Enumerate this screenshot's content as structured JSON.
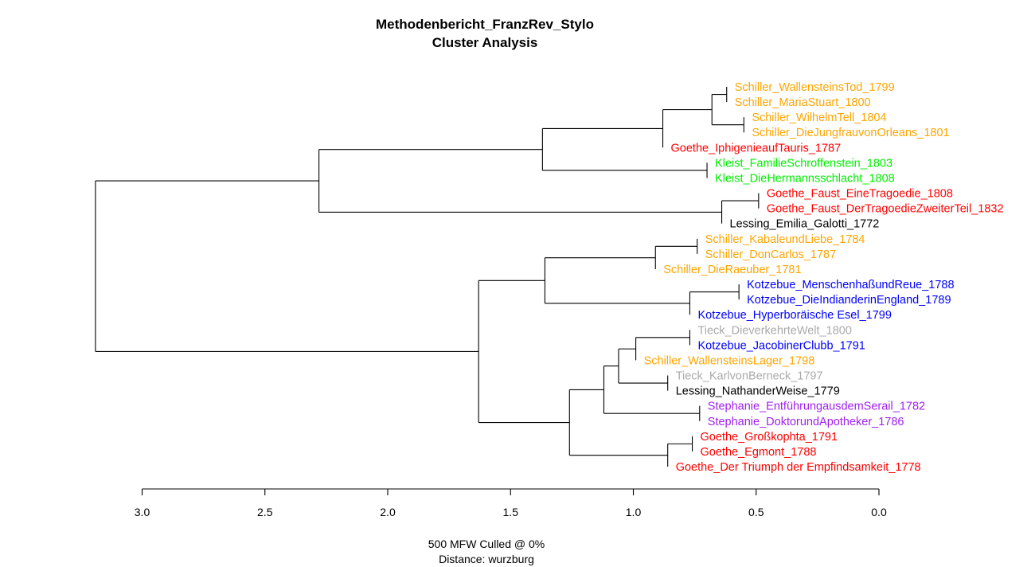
{
  "chart_data": {
    "type": "dendrogram",
    "title": [
      "Methodenbericht_FranzRev_Stylo",
      "Cluster Analysis"
    ],
    "footer": [
      "500 MFW  Culled @ 0%",
      "Distance: wurzburg"
    ],
    "x_axis": {
      "ticks": [
        3.0,
        2.5,
        2.0,
        1.5,
        1.0,
        0.5,
        0.0
      ],
      "tick_labels": [
        "3.0",
        "2.5",
        "2.0",
        "1.5",
        "1.0",
        "0.5",
        "0.0"
      ],
      "range": [
        3.0,
        0.0
      ],
      "reversed": true
    },
    "colors": {
      "Schiller": "#ffa500",
      "Goethe": "#ff0000",
      "Kleist": "#00ee00",
      "Lessing": "#000000",
      "Kotzebue": "#0000ff",
      "Tieck": "#aaaaaa",
      "Stephanie": "#a020f0"
    },
    "leaves": [
      {
        "label": "Schiller_WallensteinsTod_1799",
        "author": "Schiller"
      },
      {
        "label": "Schiller_MariaStuart_1800",
        "author": "Schiller"
      },
      {
        "label": "Schiller_WilhelmTell_1804",
        "author": "Schiller"
      },
      {
        "label": "Schiller_DieJungfrauvonOrleans_1801",
        "author": "Schiller"
      },
      {
        "label": "Goethe_IphigenieaufTauris_1787",
        "author": "Goethe"
      },
      {
        "label": "Kleist_FamilieSchroffenstein_1803",
        "author": "Kleist"
      },
      {
        "label": "Kleist_DieHermannsschlacht_1808",
        "author": "Kleist"
      },
      {
        "label": "Goethe_Faust_EineTragoedie_1808",
        "author": "Goethe"
      },
      {
        "label": "Goethe_Faust_DerTragoedieZweiterTeil_1832",
        "author": "Goethe"
      },
      {
        "label": "Lessing_Emilia_Galotti_1772",
        "author": "Lessing"
      },
      {
        "label": "Schiller_KabaleundLiebe_1784",
        "author": "Schiller"
      },
      {
        "label": "Schiller_DonCarlos_1787",
        "author": "Schiller"
      },
      {
        "label": "Schiller_DieRaeuber_1781",
        "author": "Schiller"
      },
      {
        "label": "Kotzebue_MenschenhaßundReue_1788",
        "author": "Kotzebue"
      },
      {
        "label": "Kotzebue_DieIndianderinEngland_1789",
        "author": "Kotzebue"
      },
      {
        "label": "Kotzebue_Hyperboräische Esel_1799",
        "author": "Kotzebue"
      },
      {
        "label": "Tieck_DieverkehrteWelt_1800",
        "author": "Tieck"
      },
      {
        "label": "Kotzebue_JacobinerClubb_1791",
        "author": "Kotzebue"
      },
      {
        "label": "Schiller_WallensteinsLager_1798",
        "author": "Schiller"
      },
      {
        "label": "Tieck_KarlvonBerneck_1797",
        "author": "Tieck"
      },
      {
        "label": "Lessing_NathanderWeise_1779",
        "author": "Lessing"
      },
      {
        "label": "Stephanie_EntführungausdemSerail_1782",
        "author": "Stephanie"
      },
      {
        "label": "Stephanie_DoktorundApotheker_1786",
        "author": "Stephanie"
      },
      {
        "label": "Goethe_Großkophta_1791",
        "author": "Goethe"
      },
      {
        "label": "Goethe_Egmont_1788",
        "author": "Goethe"
      },
      {
        "label": "Goethe_Der Triumph der Empfindsamkeit_1778",
        "author": "Goethe"
      }
    ],
    "merges": [
      {
        "id": "A",
        "children": [
          0,
          1
        ],
        "height": 0.62
      },
      {
        "id": "B",
        "children": [
          2,
          3
        ],
        "height": 0.55
      },
      {
        "id": "C",
        "children": [
          "A",
          "B"
        ],
        "height": 0.68
      },
      {
        "id": "D",
        "children": [
          "C",
          4
        ],
        "height": 0.88
      },
      {
        "id": "E",
        "children": [
          5,
          6
        ],
        "height": 0.7
      },
      {
        "id": "F",
        "children": [
          "D",
          "E"
        ],
        "height": 1.37
      },
      {
        "id": "G",
        "children": [
          7,
          8
        ],
        "height": 0.49
      },
      {
        "id": "H",
        "children": [
          "G",
          9
        ],
        "height": 0.64
      },
      {
        "id": "I",
        "children": [
          "F",
          "H"
        ],
        "height": 2.28
      },
      {
        "id": "J",
        "children": [
          10,
          11
        ],
        "height": 0.74
      },
      {
        "id": "K",
        "children": [
          "J",
          12
        ],
        "height": 0.91
      },
      {
        "id": "L",
        "children": [
          13,
          14
        ],
        "height": 0.57
      },
      {
        "id": "M",
        "children": [
          "L",
          15
        ],
        "height": 0.77
      },
      {
        "id": "N",
        "children": [
          "K",
          "M"
        ],
        "height": 1.36
      },
      {
        "id": "O",
        "children": [
          16,
          17
        ],
        "height": 0.77
      },
      {
        "id": "P",
        "children": [
          "O",
          18
        ],
        "height": 0.99
      },
      {
        "id": "Q",
        "children": [
          19,
          20
        ],
        "height": 0.86
      },
      {
        "id": "R",
        "children": [
          "P",
          "Q"
        ],
        "height": 1.06
      },
      {
        "id": "S",
        "children": [
          21,
          22
        ],
        "height": 0.73
      },
      {
        "id": "T",
        "children": [
          "R",
          "S"
        ],
        "height": 1.12
      },
      {
        "id": "U",
        "children": [
          23,
          24
        ],
        "height": 0.76
      },
      {
        "id": "V",
        "children": [
          "U",
          25
        ],
        "height": 0.86
      },
      {
        "id": "W",
        "children": [
          "T",
          "V"
        ],
        "height": 1.26
      },
      {
        "id": "X",
        "children": [
          "N",
          "W"
        ],
        "height": 1.63
      },
      {
        "id": "Y",
        "children": [
          "I",
          "X"
        ],
        "height": 3.19
      }
    ],
    "root": "Y"
  }
}
